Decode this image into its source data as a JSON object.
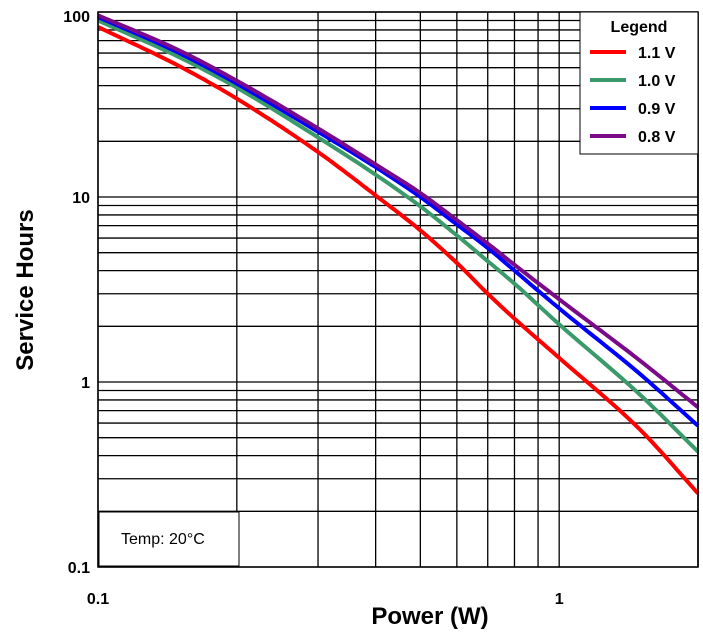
{
  "chart_data": {
    "type": "line",
    "xlabel": "Power (W)",
    "ylabel": "Service Hours",
    "x_scale": "log",
    "y_scale": "log",
    "xlim": [
      0.1,
      2.0
    ],
    "ylim": [
      0.1,
      100
    ],
    "x_ticks": [
      "0.1",
      "1"
    ],
    "y_ticks": [
      "0.1",
      "1",
      "10",
      "100"
    ],
    "grid": true,
    "legend_title": "Legend",
    "legend_position": "top-right",
    "annotation": "Temp: 20°C",
    "series": [
      {
        "name": "1.1 V",
        "color": "#ff0000",
        "x": [
          0.1,
          0.15,
          0.2,
          0.3,
          0.4,
          0.5,
          0.6,
          0.7,
          0.8,
          1.0,
          1.5,
          2.0
        ],
        "y": [
          83,
          51,
          34,
          17.5,
          10.2,
          6.6,
          4.4,
          3.0,
          2.2,
          1.35,
          0.55,
          0.25
        ]
      },
      {
        "name": "1.0 V",
        "color": "#3a9a6a",
        "x": [
          0.1,
          0.15,
          0.2,
          0.3,
          0.4,
          0.5,
          0.6,
          0.7,
          0.8,
          1.0,
          1.5,
          2.0
        ],
        "y": [
          90,
          57,
          39,
          21,
          13.2,
          8.9,
          6.2,
          4.5,
          3.4,
          2.05,
          0.85,
          0.42
        ]
      },
      {
        "name": "0.9 V",
        "color": "#0000ff",
        "x": [
          0.1,
          0.15,
          0.2,
          0.3,
          0.4,
          0.5,
          0.6,
          0.7,
          0.8,
          1.0,
          1.5,
          2.0
        ],
        "y": [
          94,
          60,
          41,
          22.5,
          14.5,
          10,
          7.1,
          5.3,
          4.0,
          2.5,
          1.1,
          0.58
        ]
      },
      {
        "name": "0.8 V",
        "color": "#7a0a8a",
        "x": [
          0.1,
          0.15,
          0.2,
          0.3,
          0.4,
          0.5,
          0.6,
          0.7,
          0.8,
          1.0,
          1.5,
          2.0
        ],
        "y": [
          96,
          62,
          42.5,
          23.5,
          15,
          10.5,
          7.5,
          5.6,
          4.3,
          2.8,
          1.3,
          0.73
        ]
      }
    ]
  }
}
